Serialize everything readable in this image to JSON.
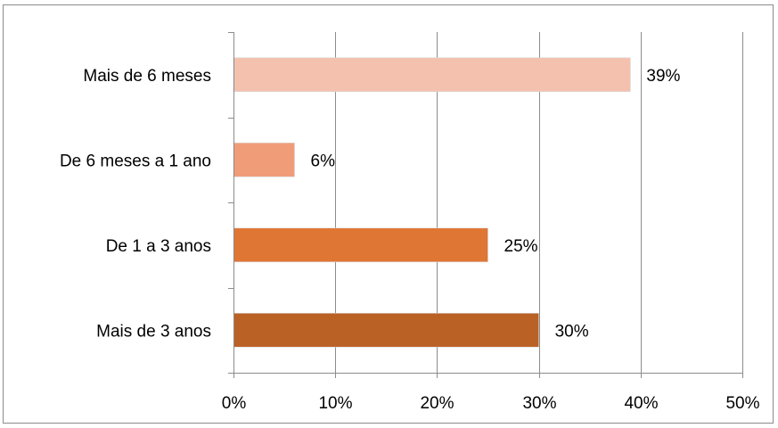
{
  "chart_data": {
    "type": "bar",
    "orientation": "horizontal",
    "categories": [
      "Mais de 6 meses",
      "De 6 meses a 1 ano",
      "De 1 a 3 anos",
      "Mais de 3 anos"
    ],
    "values": [
      39,
      6,
      25,
      30
    ],
    "value_labels": [
      "39%",
      "6%",
      "25%",
      "30%"
    ],
    "colors": [
      "#F4C1AE",
      "#F19C79",
      "#E07634",
      "#BA6125"
    ],
    "xlim": [
      0,
      50
    ],
    "x_ticks": [
      0,
      10,
      20,
      30,
      40,
      50
    ],
    "x_tick_labels": [
      "0%",
      "10%",
      "20%",
      "30%",
      "40%",
      "50%"
    ],
    "grid": true,
    "grid_color": "#8c8c8c",
    "legend": "none"
  }
}
